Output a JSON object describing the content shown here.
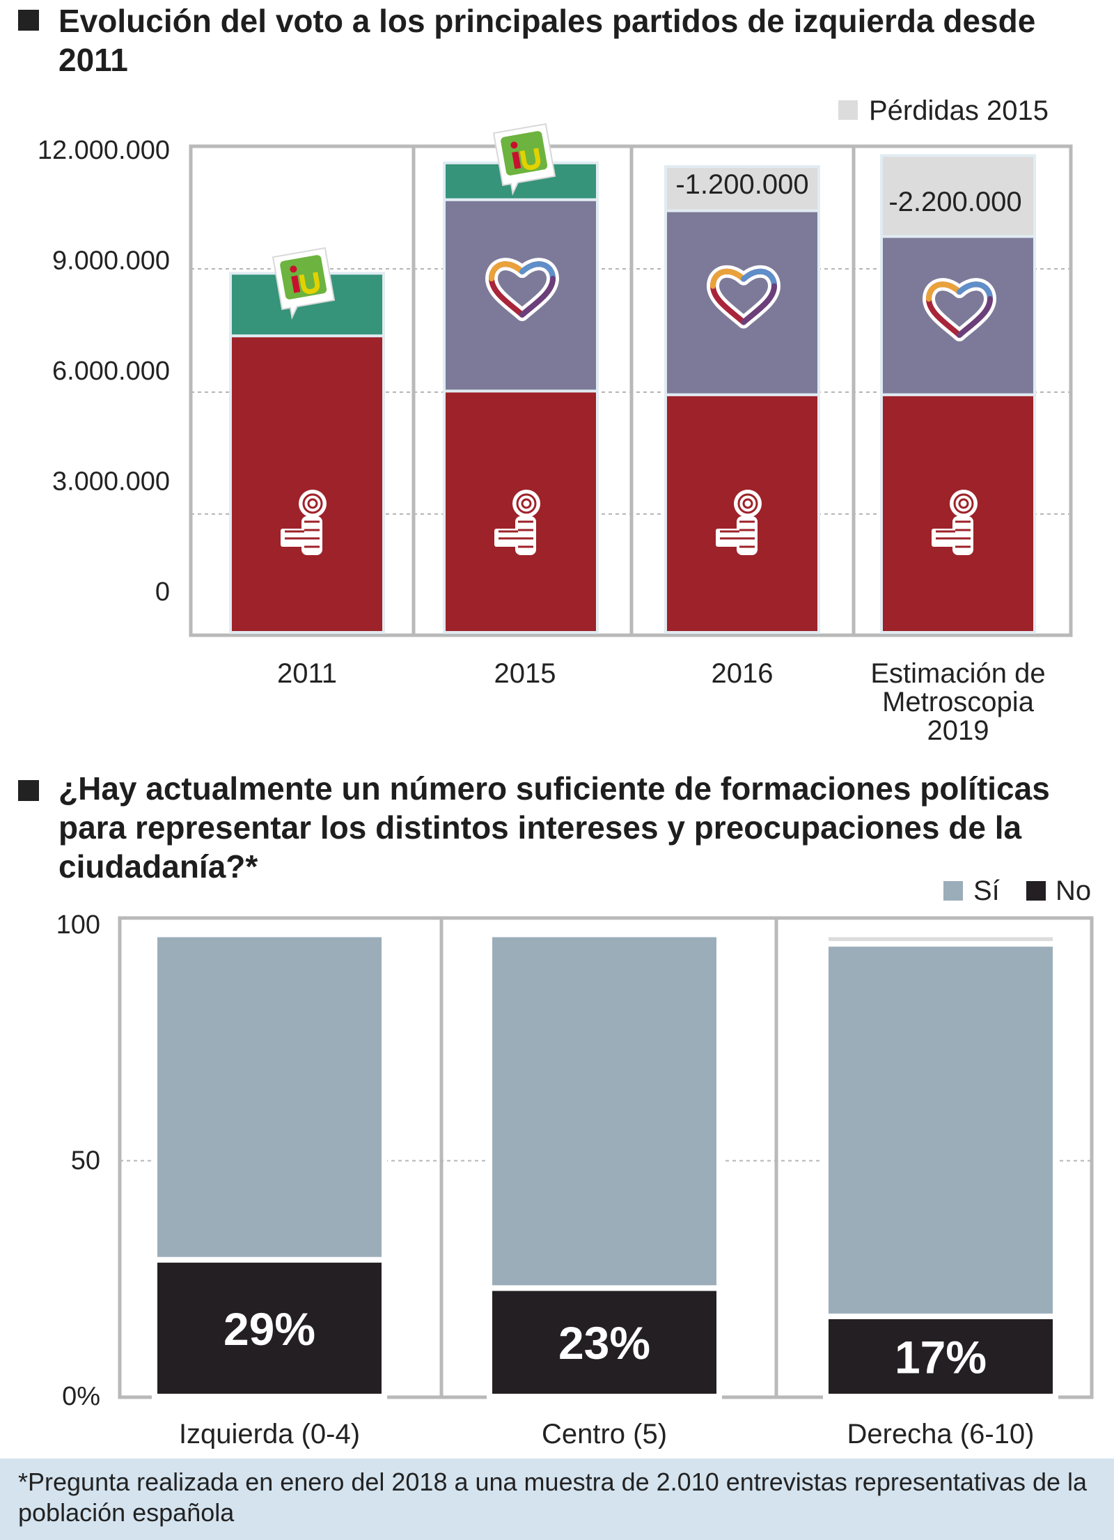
{
  "chart_data": [
    {
      "type": "bar",
      "stacked": true,
      "title": "Evolución del voto a los principales partidos de izquierda desde 2011",
      "categories": [
        "2011",
        "2015",
        "2016",
        "Estimación de Metroscopia 2019"
      ],
      "ylim": [
        0,
        13000000
      ],
      "yticks": [
        0,
        3000000,
        6000000,
        9000000,
        12000000
      ],
      "ytick_labels": [
        "0",
        "3.000.000",
        "6.000.000",
        "9.000.000",
        "12.000.000"
      ],
      "series": [
        {
          "party": "PSOE",
          "icon": "psoe-rose-fist-icon",
          "color": "#9e2229",
          "values": [
            7000000,
            5500000,
            5400000,
            5400000
          ]
        },
        {
          "party": "Podemos",
          "icon": "podemos-heart-icon",
          "color": "#7d7a99",
          "values": [
            0,
            5200000,
            5000000,
            4300000
          ]
        },
        {
          "party": "IU",
          "icon": "iu-logo-icon",
          "color": "#359479",
          "values": [
            1700000,
            1000000,
            0,
            0
          ]
        },
        {
          "name": "Pérdidas 2015",
          "color": "#dcdcdc",
          "values": [
            0,
            0,
            1200000,
            2200000
          ]
        }
      ],
      "annotations": [
        "-1.200.000",
        "-2.200.000"
      ],
      "grid": true,
      "legend": "top-right"
    },
    {
      "type": "bar",
      "stacked": true,
      "title": "¿Hay actualmente un número suficiente de formaciones políticas para representar los distintos intereses y preocupaciones de la ciudadanía?*",
      "categories": [
        "Izquierda (0-4)",
        "Centro (5)",
        "Derecha (6-10)"
      ],
      "ylim": [
        0,
        100
      ],
      "yticks": [
        0,
        50,
        100
      ],
      "ytick_labels": [
        "0%",
        "50",
        "100"
      ],
      "series": [
        {
          "name": "No",
          "color": "#231f22",
          "values": [
            29,
            23,
            17
          ]
        },
        {
          "name": "Sí",
          "color": "#9badb9",
          "values": [
            69,
            75,
            79
          ]
        },
        {
          "color": "#dcdcdc",
          "values": [
            0,
            0,
            2
          ]
        }
      ],
      "data_labels": [
        "29%",
        "23%",
        "17%"
      ],
      "grid": true,
      "legend": "top-right"
    }
  ],
  "footnote": "*Pregunta realizada en enero del 2018 a una muestra de 2.010 entrevistas representativas de la población española"
}
